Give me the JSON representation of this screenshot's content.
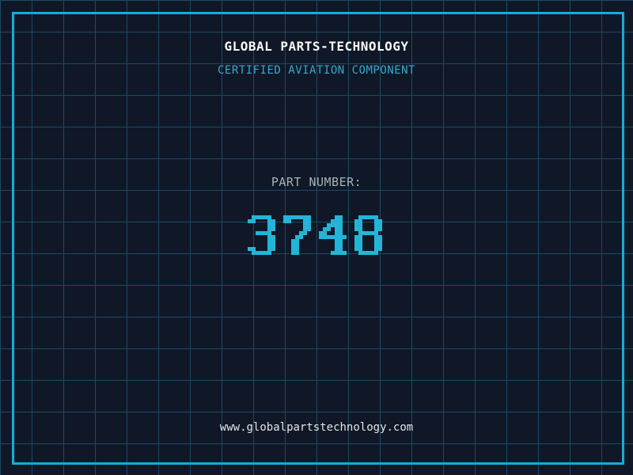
{
  "header": {
    "company_name": "GLOBAL PARTS-TECHNOLOGY",
    "tagline": "CERTIFIED AVIATION COMPONENT"
  },
  "part": {
    "label": "PART NUMBER:",
    "number": "3748"
  },
  "footer": {
    "website": "www.globalpartstechnology.com"
  },
  "colors": {
    "background": "#101827",
    "grid_line": "#1b4a63",
    "frame": "#10aede",
    "company_text": "#f7f9fa",
    "tagline_text": "#31a9ce",
    "label_text": "#a9b1ba",
    "part_number": "#23b5d8",
    "website_text": "#dfe5e8"
  }
}
